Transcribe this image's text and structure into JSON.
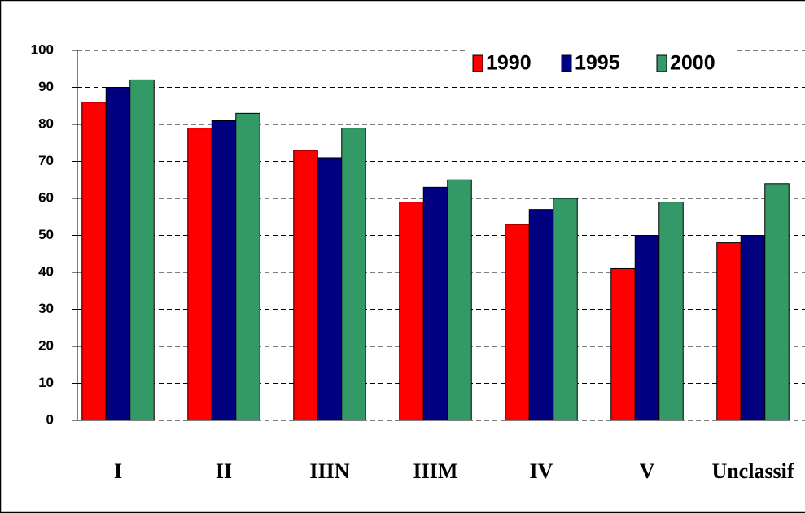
{
  "chart_data": {
    "type": "bar",
    "categories": [
      "I",
      "II",
      "IIIN",
      "IIIM",
      "IV",
      "V",
      "Unclassif"
    ],
    "series": [
      {
        "name": "1990",
        "color": "#ff0000",
        "values": [
          86,
          79,
          73,
          59,
          53,
          41,
          48
        ]
      },
      {
        "name": "1995",
        "color": "#000080",
        "values": [
          90,
          81,
          71,
          63,
          57,
          50,
          50
        ]
      },
      {
        "name": "2000",
        "color": "#339966",
        "values": [
          92,
          83,
          79,
          65,
          60,
          59,
          64
        ]
      }
    ],
    "ylim": [
      0,
      100
    ],
    "yticks": [
      0,
      10,
      20,
      30,
      40,
      50,
      60,
      70,
      80,
      90,
      100
    ],
    "grid": true
  }
}
